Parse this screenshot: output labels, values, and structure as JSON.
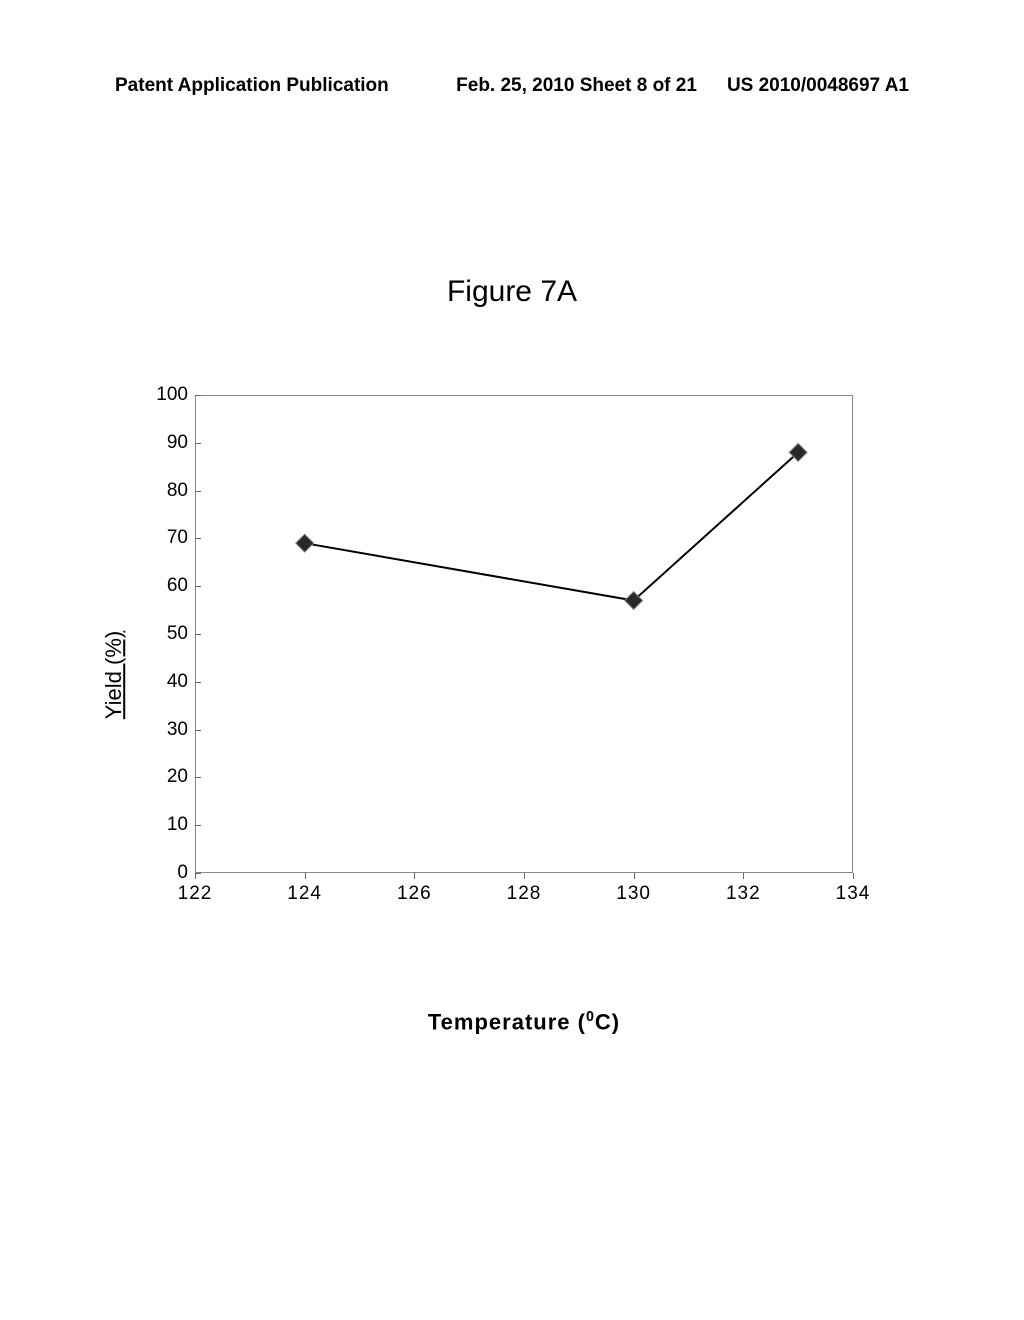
{
  "header": {
    "left": "Patent Application Publication",
    "center": "Feb. 25, 2010  Sheet 8 of 21",
    "right": "US 2010/0048697 A1"
  },
  "figure_title": "Figure 7A",
  "chart": {
    "type": "line",
    "ylabel": "Yield (%)",
    "xlabel_prefix": "Temperature (",
    "xlabel_suffix": "C)",
    "xlabel_super": "0",
    "ylim": [
      0,
      100
    ],
    "xlim": [
      122,
      134
    ],
    "ytick_step": 10,
    "xtick_step": 2,
    "yticks": [
      0,
      10,
      20,
      30,
      40,
      50,
      60,
      70,
      80,
      90,
      100
    ],
    "xticks": [
      122,
      124,
      126,
      128,
      130,
      132,
      134
    ],
    "data_points": [
      {
        "x": 124,
        "y": 69
      },
      {
        "x": 130,
        "y": 57
      },
      {
        "x": 133,
        "y": 88
      }
    ],
    "line_color": "#000000",
    "line_width": 2,
    "marker_color": "#282828",
    "marker_size": 18,
    "background_color": "#ffffff",
    "axis_color": "#888888",
    "tick_color": "#666666",
    "label_fontsize": 22,
    "tick_fontsize": 19,
    "title_fontsize": 30
  }
}
